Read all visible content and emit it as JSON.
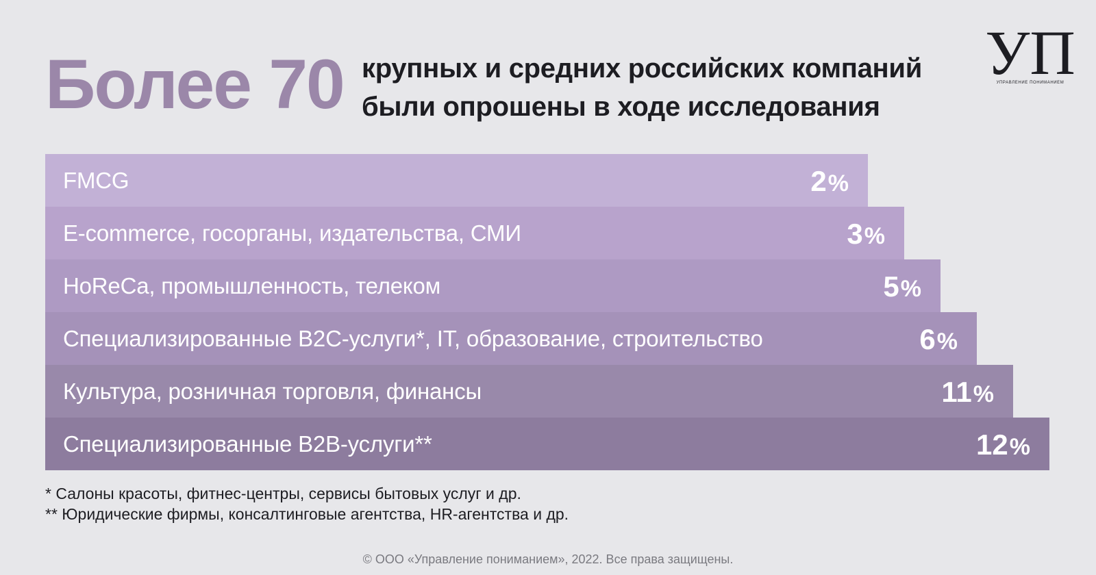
{
  "headline": {
    "number_text": "Более 70",
    "line1": "крупных и средних российских компаний",
    "line2": "были опрошены в ходе исследования"
  },
  "logo": {
    "mark": "УП",
    "caption": "управление пониманием"
  },
  "chart_data": {
    "type": "bar",
    "orientation": "horizontal",
    "categories": [
      "FMCG",
      "E-commerce, госорганы, издательства, СМИ",
      "HoReCa, промышленность, телеком",
      "Специализированные B2C-услуги*, IT, образование, строительство",
      "Культура, розничная торговля, финансы",
      "Специализированные B2B-услуги**"
    ],
    "values": [
      2,
      3,
      5,
      6,
      11,
      12
    ],
    "value_labels": [
      "2",
      "3",
      "5",
      "6",
      "11",
      "12"
    ],
    "unit": "%",
    "bar_colors": [
      "#c2b1d6",
      "#b8a3cc",
      "#ae9ac3",
      "#a592b9",
      "#9989aa",
      "#8d7c9e"
    ]
  },
  "footnotes": [
    "* Салоны красоты, фитнес-центры, сервисы бытовых услуг и др.",
    "** Юридические фирмы, консалтинговые агентства, HR-агентства и др."
  ],
  "copyright": "© ООО «Управление пониманием», 2022. Все права защищены."
}
